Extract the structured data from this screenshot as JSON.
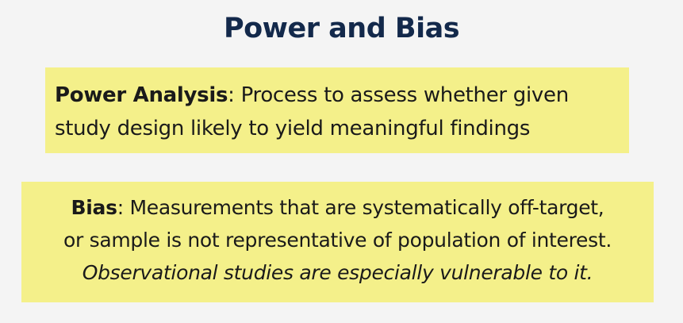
{
  "slide": {
    "title": "Power and Bias"
  },
  "power_box": {
    "term": "Power Analysis",
    "line1_rest": ": Process to assess whether given",
    "line2": "study design likely to yield meaningful findings"
  },
  "bias_box": {
    "term": "Bias",
    "line1_rest": ": Measurements that are systematically off-target,",
    "line2": "or sample is not representative of population of interest.",
    "note": "Observational studies are especially vulnerable to it."
  },
  "colors": {
    "title": "#13294b",
    "box_fill": "#f4f08a",
    "background": "#f4f4f4"
  }
}
